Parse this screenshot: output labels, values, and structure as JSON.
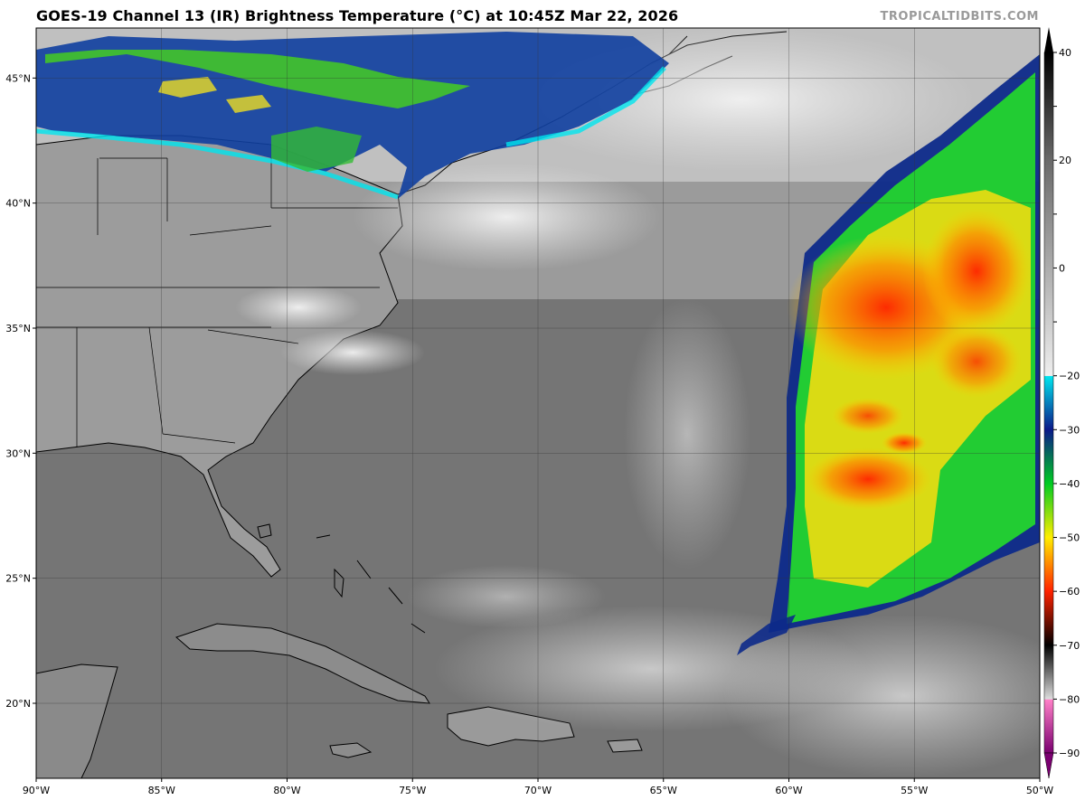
{
  "header": {
    "title": "GOES-19 Channel 13 (IR) Brightness Temperature (°C) at 10:45Z Mar 22, 2026",
    "credit": "TROPICALTIDBITS.COM"
  },
  "map": {
    "projection": "equirectangular",
    "lon_range": [
      -90,
      -50
    ],
    "lat_range": [
      17,
      47
    ],
    "x_ticks": [
      {
        "lon": -90,
        "label": "90°W"
      },
      {
        "lon": -85,
        "label": "85°W"
      },
      {
        "lon": -80,
        "label": "80°W"
      },
      {
        "lon": -75,
        "label": "75°W"
      },
      {
        "lon": -70,
        "label": "70°W"
      },
      {
        "lon": -65,
        "label": "65°W"
      },
      {
        "lon": -60,
        "label": "60°W"
      },
      {
        "lon": -55,
        "label": "55°W"
      },
      {
        "lon": -50,
        "label": "50°W"
      }
    ],
    "y_ticks": [
      {
        "lat": 45,
        "label": "45°N"
      },
      {
        "lat": 40,
        "label": "40°N"
      },
      {
        "lat": 35,
        "label": "35°N"
      },
      {
        "lat": 30,
        "label": "30°N"
      },
      {
        "lat": 25,
        "label": "25°N"
      },
      {
        "lat": 20,
        "label": "20°N"
      }
    ],
    "colors": {
      "ocean_gray": "#7a7a7a",
      "land_gray": "#9a9a9a",
      "cloud_white": "#e4e4e4",
      "coast": "#000000"
    }
  },
  "colorbar": {
    "min": -90,
    "max": 40,
    "ticks": [
      {
        "value": 40,
        "label": "40"
      },
      {
        "value": 30,
        "label": ""
      },
      {
        "value": 20,
        "label": "20"
      },
      {
        "value": 10,
        "label": ""
      },
      {
        "value": 0,
        "label": "0"
      },
      {
        "value": -10,
        "label": ""
      },
      {
        "value": -20,
        "label": "−20"
      },
      {
        "value": -30,
        "label": "−30"
      },
      {
        "value": -40,
        "label": "−40"
      },
      {
        "value": -50,
        "label": "−50"
      },
      {
        "value": -60,
        "label": "−60"
      },
      {
        "value": -70,
        "label": "−70"
      },
      {
        "value": -80,
        "label": "−80"
      },
      {
        "value": -90,
        "label": "−90"
      }
    ],
    "stops": [
      {
        "value": 40,
        "color": "#000000"
      },
      {
        "value": 20,
        "color": "#6a6a6a"
      },
      {
        "value": -20,
        "color": "#eeeeee"
      },
      {
        "value": -20.1,
        "color": "#00e5ee"
      },
      {
        "value": -30,
        "color": "#0a1a8a"
      },
      {
        "value": -40,
        "color": "#00cc22"
      },
      {
        "value": -50,
        "color": "#ffee00"
      },
      {
        "value": -60,
        "color": "#ff2200"
      },
      {
        "value": -70,
        "color": "#000000"
      },
      {
        "value": -80,
        "color": "#dddddd"
      },
      {
        "value": -80.1,
        "color": "#ff80c8"
      },
      {
        "value": -90,
        "color": "#7a0070"
      }
    ]
  }
}
